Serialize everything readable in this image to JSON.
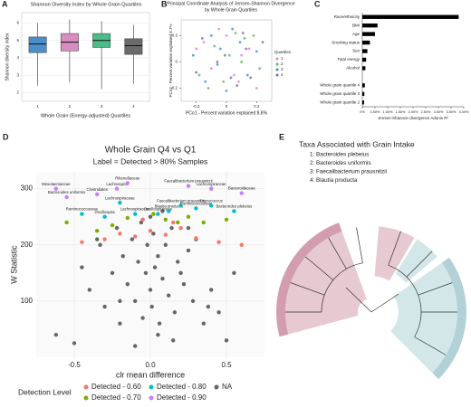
{
  "chart_data": [
    {
      "type": "box",
      "panel": "A",
      "title": "Shannon Diversity Index by Whole Grain Quartiles",
      "x_label": "Whole Grain (Energy-adjusted) Quartiles",
      "y_label": "Shannon diversity index",
      "categories": [
        "1",
        "2",
        "3",
        "4"
      ],
      "colors": [
        "#4a8fc9",
        "#d98cc0",
        "#4dbb8a",
        "#6b6b6b"
      ],
      "stats": [
        {
          "min": 2.4,
          "q1": 4.3,
          "median": 4.8,
          "q3": 5.2,
          "max": 6.0
        },
        {
          "min": 2.6,
          "q1": 4.4,
          "median": 4.9,
          "q3": 5.4,
          "max": 6.2
        },
        {
          "min": 2.2,
          "q1": 4.6,
          "median": 5.0,
          "q3": 5.4,
          "max": 6.1
        },
        {
          "min": 2.5,
          "q1": 4.2,
          "median": 4.7,
          "q3": 5.1,
          "max": 5.9
        }
      ],
      "ylim": [
        1.5,
        6.6
      ],
      "yticks": [
        2,
        3,
        4,
        5,
        6
      ],
      "grid": true
    },
    {
      "type": "scatter",
      "panel": "B",
      "title": [
        "Principal Coordinate Analysis of Jensen-Shannon Divergence",
        "by Whole Grain Quartiles"
      ],
      "x_label": "PCo1 - Percent variation explained 8.8%",
      "y_label": "PCo2 - Percent variation explained 5.7%",
      "legend_title": "Quartiles",
      "series": [
        {
          "name": "1",
          "color": "#e580c8",
          "x": [
            -0.2,
            -0.1,
            0,
            0.05,
            0.1,
            -0.15,
            0.2,
            -0.05,
            0.15,
            0.08
          ],
          "y": [
            0.1,
            -0.05,
            0.2,
            -0.1,
            0.05,
            0.15,
            -0.2,
            0.25,
            0.1,
            -0.15
          ]
        },
        {
          "name": "2",
          "color": "#5cb85c",
          "x": [
            -0.18,
            -0.08,
            0.02,
            0.12,
            0.22,
            -0.12,
            0.06,
            -0.02,
            0.18,
            0.1
          ],
          "y": [
            -0.1,
            0.12,
            0.05,
            0.18,
            -0.05,
            -0.2,
            0.22,
            -0.15,
            0.2,
            0.0
          ]
        },
        {
          "name": "3",
          "color": "#3a8fd0",
          "x": [
            -0.22,
            -0.14,
            -0.04,
            0.04,
            0.14,
            -0.1,
            0.0,
            0.09,
            0.2,
            -0.06
          ],
          "y": [
            0.05,
            -0.15,
            0.1,
            0.25,
            -0.1,
            0.2,
            -0.22,
            0.15,
            0.08,
            -0.02
          ]
        },
        {
          "name": "4",
          "color": "#7a6aa8",
          "x": [
            -0.16,
            -0.06,
            0.03,
            0.13,
            0.24,
            -0.2,
            0.07,
            -0.01,
            0.16,
            0.11
          ],
          "y": [
            0.18,
            0.0,
            -0.12,
            0.1,
            0.15,
            -0.08,
            -0.18,
            0.05,
            -0.12,
            0.22
          ]
        }
      ],
      "xlim": [
        -0.3,
        0.3
      ],
      "ylim": [
        -0.3,
        0.32
      ],
      "xticks": [
        -0.2,
        0,
        0.2
      ],
      "yticks": [
        -0.2,
        0,
        0.2
      ],
      "grid": false
    },
    {
      "type": "hbar",
      "panel": "C",
      "x_label": "Jensen-Shannon divergence Adonis R²",
      "color": "#000000",
      "categories": [
        "Race/ethnicity",
        "BMI",
        "Age",
        "Smoking status",
        "Sex",
        "Total energy",
        "Alcohol",
        null,
        "Whole grain quartile 4",
        "Whole grain quartile 3",
        "Whole grain quartile 2"
      ],
      "values": [
        3.8,
        0.6,
        0.5,
        0.3,
        0.2,
        0.15,
        0.12,
        null,
        0.1,
        0.08,
        0.07
      ],
      "xlim": [
        0,
        4
      ],
      "xticks": [
        {
          "value": 0,
          "label": "0%"
        },
        {
          "value": 0.5,
          "label": "0.50%"
        },
        {
          "value": 1,
          "label": "1.00%"
        },
        {
          "value": 1.5,
          "label": "1.50%"
        },
        {
          "value": 2,
          "label": "2.00%"
        },
        {
          "value": 2.5,
          "label": "2.50%"
        },
        {
          "value": 3,
          "label": "3.00%"
        },
        {
          "value": 3.5,
          "label": "3.50%"
        },
        {
          "value": 4,
          "label": "4.00%"
        }
      ]
    },
    {
      "type": "scatter",
      "panel": "D",
      "title": "Whole Grain Q4 vs Q1",
      "subtitle": "Label = Detected > 80% Samples",
      "x_label": "clr mean difference",
      "y_label": "W Statistic",
      "legend_title": "Detection Level",
      "series": [
        {
          "name": "Detected - 0.60",
          "color": "#f8766d",
          "x": [
            -0.45,
            -0.3,
            -0.2,
            -0.1,
            0.0,
            0.1,
            0.15,
            0.3,
            0.45,
            0.6,
            -0.05,
            0.2
          ],
          "y": [
            205,
            210,
            220,
            215,
            225,
            218,
            240,
            212,
            205,
            200,
            245,
            230
          ]
        },
        {
          "name": "Detected - 0.70",
          "color": "#7cae00",
          "x": [
            -0.55,
            -0.35,
            -0.15,
            0.1,
            0.18,
            0.25,
            0.35,
            0.5,
            0.02,
            -0.25
          ],
          "y": [
            240,
            225,
            248,
            245,
            240,
            250,
            240,
            245,
            255,
            235
          ]
        },
        {
          "name": "Detected - 0.80",
          "color": "#00bfc4",
          "x": [
            -0.45,
            -0.3,
            -0.1,
            0.05,
            0.12,
            0.2,
            0.3,
            0.55,
            -0.2,
            0.4
          ],
          "y": [
            255,
            250,
            255,
            255,
            260,
            270,
            265,
            260,
            275,
            270
          ],
          "labels": [
            "Ruminococcaceae",
            "Oscillospira",
            "Lachnospiraceae",
            "Oscillospiraceae",
            "Blautia producta",
            "Faecalibacterium prausnitzii",
            "Ruminococcaceae",
            "Bacteroides plebeius",
            "Lachnospiraceae",
            "Coprococcus"
          ]
        },
        {
          "name": "Detected - 0.90",
          "color": "#c77cff",
          "x": [
            -0.62,
            -0.55,
            -0.35,
            -0.22,
            -0.15,
            0.25,
            0.4,
            0.6
          ],
          "y": [
            300,
            285,
            290,
            300,
            310,
            305,
            300,
            292
          ],
          "labels": [
            "Mesotaeniaceae",
            "Bacteroides uniformis",
            "Clostridiales",
            "Lachnospira",
            "Rikenellaceae",
            "Faecalibacterium prausnitzii",
            "Lachnospiraceae",
            "Bacteroidaceae"
          ]
        },
        {
          "name": "NA",
          "color": "#666666",
          "x": [
            -0.62,
            -0.45,
            -0.4,
            -0.33,
            -0.3,
            -0.25,
            -0.22,
            -0.2,
            -0.18,
            -0.15,
            -0.12,
            -0.1,
            -0.08,
            -0.06,
            -0.05,
            -0.03,
            -0.02,
            0,
            0.01,
            0.02,
            0.03,
            0.05,
            0.06,
            0.08,
            0.1,
            0.12,
            0.14,
            0.16,
            0.18,
            0.2,
            0.22,
            0.25,
            0.28,
            0.3,
            0.35,
            0.4,
            0.45,
            0.55,
            -0.5,
            0.5,
            -0.1,
            0.05,
            0.15,
            -0.2,
            0.0,
            0.08,
            -0.05,
            0.25,
            -0.35,
            0.38
          ],
          "y": [
            40,
            160,
            120,
            200,
            90,
            150,
            230,
            60,
            180,
            130,
            210,
            100,
            170,
            240,
            70,
            150,
            200,
            120,
            90,
            220,
            160,
            180,
            60,
            140,
            200,
            110,
            230,
            80,
            170,
            150,
            130,
            190,
            100,
            210,
            60,
            120,
            80,
            150,
            25,
            30,
            20,
            40,
            30,
            100,
            250,
            260,
            245,
            230,
            210,
            90
          ]
        }
      ],
      "xlim": [
        -0.75,
        0.75
      ],
      "ylim": [
        0,
        330
      ],
      "xticks": [
        -0.5,
        {
          "value": 0,
          "label": "0.0"
        },
        0.5
      ],
      "yticks": [
        100,
        200,
        300
      ],
      "grid": true
    }
  ],
  "cladogram": {
    "panel": "E",
    "title": "Taxa Associated with Grain Intake",
    "items": [
      "1: Bacteroides plebeius",
      "2: Bacteroides uniformis",
      "3: Faecalibacterium prausnitzii",
      "4: Blautia producta"
    ]
  }
}
